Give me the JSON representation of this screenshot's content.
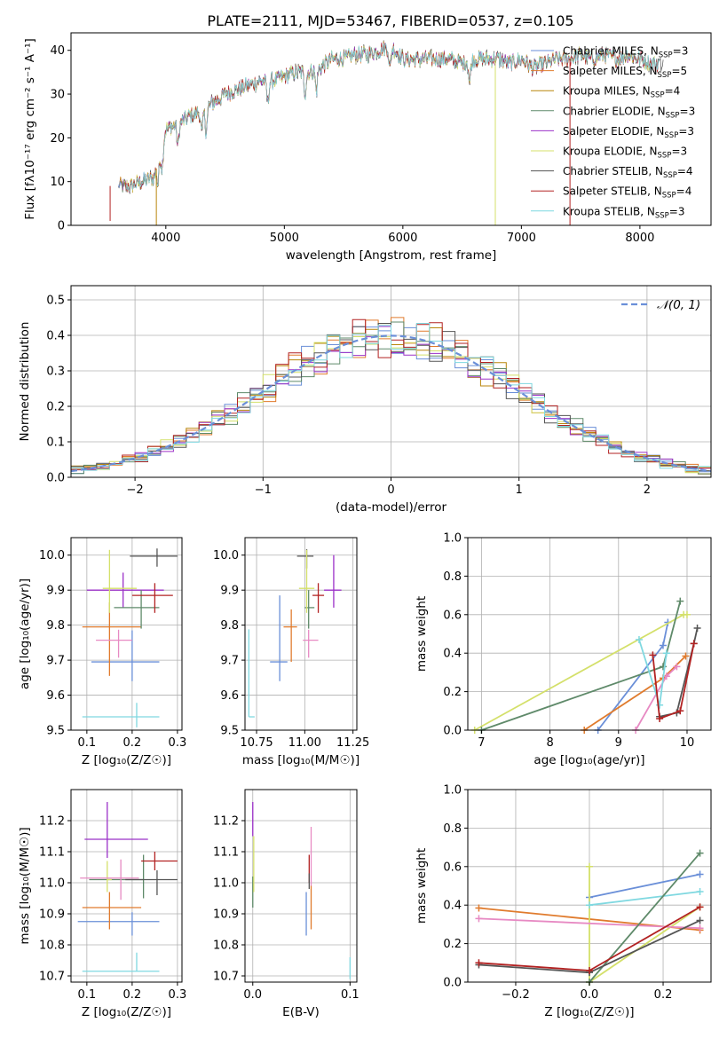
{
  "figure": {
    "title": "PLATE=2111, MJD=53467, FIBERID=0537, z=0.105"
  },
  "colors": {
    "chabrier_miles": "#6a8fd8",
    "salpeter_miles": "#e07b2d",
    "kroupa_miles": "#b8860b",
    "chabrier_elodie": "#5f8a6a",
    "salpeter_elodie": "#9b30c8",
    "kroupa_elodie": "#d4e06a",
    "chabrier_stelib": "#555555",
    "salpeter_stelib": "#b22222",
    "kroupa_stelib": "#7fd8e0",
    "pink": "#e78ac3"
  },
  "chart_data": [
    {
      "id": "spectrum",
      "type": "line",
      "xlabel": "wavelength [Angstrom, rest frame]",
      "ylabel": "Flux [fλ10⁻¹⁷ erg cm⁻² s⁻¹ A⁻¹]",
      "xlim": [
        3200,
        8600
      ],
      "ylim": [
        0,
        44
      ],
      "xticks": [
        4000,
        5000,
        6000,
        7000,
        8000
      ],
      "yticks": [
        0,
        10,
        20,
        30,
        40
      ],
      "grid": false,
      "legend_position": "right",
      "series": [
        {
          "name": "Chabrier MILES, N_SSP=3",
          "color": "#6a8fd8"
        },
        {
          "name": "Salpeter MILES, N_SSP=5",
          "color": "#e07b2d"
        },
        {
          "name": "Kroupa MILES, N_SSP=4",
          "color": "#b8860b"
        },
        {
          "name": "Chabrier ELODIE, N_SSP=3",
          "color": "#5f8a6a"
        },
        {
          "name": "Salpeter ELODIE, N_SSP=3",
          "color": "#9b30c8"
        },
        {
          "name": "Kroupa ELODIE, N_SSP=3",
          "color": "#d4e06a"
        },
        {
          "name": "Chabrier STELIB, N_SSP=4",
          "color": "#555555"
        },
        {
          "name": "Salpeter STELIB, N_SSP=4",
          "color": "#b22222"
        },
        {
          "name": "Kroupa STELIB, N_SSP=3",
          "color": "#7fd8e0"
        }
      ],
      "continuum": {
        "x": [
          3600,
          3700,
          3800,
          3900,
          3950,
          4000,
          4100,
          4200,
          4300,
          4400,
          4500,
          4600,
          4700,
          4800,
          4900,
          5000,
          5100,
          5200,
          5300,
          5400,
          5500,
          5600,
          5700,
          5800,
          5900,
          6000,
          6100,
          6200,
          6300,
          6400,
          6500,
          6600,
          6700,
          6800,
          6900,
          7000,
          7100,
          7200,
          7300,
          7400,
          7500,
          7600,
          7700,
          7800,
          7900,
          8000,
          8100,
          8200
        ],
        "y": [
          9,
          9,
          10,
          11,
          16,
          22,
          23,
          25,
          26,
          28,
          30,
          31,
          32,
          33,
          33,
          34,
          35,
          35,
          36,
          38,
          38,
          39,
          39,
          40,
          41,
          38,
          38,
          38,
          38,
          38,
          37,
          38,
          38,
          38,
          37,
          38,
          36,
          37,
          38,
          38,
          39,
          38,
          39,
          38,
          39,
          38,
          37,
          37
        ]
      },
      "spikes": [
        {
          "x": 3530,
          "y": 1,
          "color": "#b22222"
        },
        {
          "x": 3920,
          "y": 0,
          "color": "#b8860b"
        },
        {
          "x": 6780,
          "y": 0,
          "color": "#d4e06a"
        },
        {
          "x": 7410,
          "y": 0,
          "color": "#b22222"
        }
      ]
    },
    {
      "id": "residuals",
      "type": "histogram",
      "xlabel": "(data-model)/error",
      "ylabel": "Normed distribution",
      "xlim": [
        -2.5,
        2.5
      ],
      "ylim": [
        0,
        0.54
      ],
      "xticks": [
        -2,
        -1,
        0,
        1,
        2
      ],
      "yticks": [
        0.0,
        0.1,
        0.2,
        0.3,
        0.4,
        0.5
      ],
      "grid": true,
      "legend_position": "upper right",
      "reference_curve": {
        "name": "𝒩(0, 1)",
        "color": "#6a8fd8",
        "style": "dashed"
      },
      "bin_width": 0.1,
      "bin_start": -2.5
    },
    {
      "id": "age_vs_Z",
      "type": "errorbar",
      "xlabel": "Z [log₁₀(Z/Z☉)]",
      "ylabel": "age  [log₁₀(age/yr)]",
      "xlim": [
        0.065,
        0.31
      ],
      "ylim": [
        9.5,
        10.05
      ],
      "xticks": [
        0.1,
        0.2,
        0.3
      ],
      "yticks": [
        9.5,
        9.6,
        9.7,
        9.8,
        9.9,
        10.0
      ],
      "grid": true,
      "points": [
        {
          "x": 0.2,
          "xerr": [
            0.09,
            0.06
          ],
          "y": 9.695,
          "yerr": [
            0.055,
            0.09
          ],
          "color": "#6a8fd8"
        },
        {
          "x": 0.15,
          "xerr": [
            0.06,
            0.07
          ],
          "y": 9.795,
          "yerr": [
            0.14,
            0.07
          ],
          "color": "#e07b2d"
        },
        {
          "x": 0.18,
          "xerr": [
            0.08,
            0.09
          ],
          "y": 9.9,
          "yerr": [
            0.05,
            0.05
          ],
          "color": "#9b30c8"
        },
        {
          "x": 0.22,
          "xerr": [
            0.06,
            0.04
          ],
          "y": 9.85,
          "yerr": [
            0.06,
            0.05
          ],
          "color": "#5f8a6a"
        },
        {
          "x": 0.25,
          "xerr": [
            0.05,
            0.04
          ],
          "y": 9.885,
          "yerr": [
            0.05,
            0.035
          ],
          "color": "#b22222"
        },
        {
          "x": 0.255,
          "xerr": [
            0.06,
            0.045
          ],
          "y": 9.997,
          "yerr": [
            0.03,
            0.022
          ],
          "color": "#555555"
        },
        {
          "x": 0.15,
          "xerr": [
            0.015,
            0.06
          ],
          "y": 9.905,
          "yerr": [
            0.07,
            0.11
          ],
          "color": "#d4e06a"
        },
        {
          "x": 0.17,
          "xerr": [
            0.05,
            0.03
          ],
          "y": 9.757,
          "yerr": [
            0.05,
            0.03
          ],
          "color": "#e78ac3"
        },
        {
          "x": 0.21,
          "xerr": [
            0.12,
            0.05
          ],
          "y": 9.538,
          "yerr": [
            0.03,
            0.04
          ],
          "color": "#7fd8e0"
        }
      ]
    },
    {
      "id": "age_vs_mass",
      "type": "errorbar",
      "xlabel": "mass [log₁₀(M/M☉)]",
      "ylabel": "",
      "xlim": [
        10.69,
        11.27
      ],
      "ylim": [
        9.5,
        10.05
      ],
      "xticks": [
        10.75,
        11.0,
        11.25
      ],
      "yticks": [
        9.5,
        9.6,
        9.7,
        9.8,
        9.9,
        10.0
      ],
      "grid": true,
      "points": [
        {
          "x": 10.87,
          "xerr": [
            0.05,
            0.04
          ],
          "y": 9.695,
          "yerr": [
            0.055,
            0.19
          ],
          "color": "#6a8fd8"
        },
        {
          "x": 10.93,
          "xerr": [
            0.04,
            0.03
          ],
          "y": 9.795,
          "yerr": [
            0.1,
            0.05
          ],
          "color": "#e07b2d"
        },
        {
          "x": 11.15,
          "xerr": [
            0.05,
            0.04
          ],
          "y": 9.9,
          "yerr": [
            0.05,
            0.1
          ],
          "color": "#9b30c8"
        },
        {
          "x": 11.02,
          "xerr": [
            0.02,
            0.03
          ],
          "y": 9.85,
          "yerr": [
            0.06,
            0.05
          ],
          "color": "#5f8a6a"
        },
        {
          "x": 11.07,
          "xerr": [
            0.03,
            0.03
          ],
          "y": 9.885,
          "yerr": [
            0.05,
            0.035
          ],
          "color": "#b22222"
        },
        {
          "x": 11.01,
          "xerr": [
            0.05,
            0.035
          ],
          "y": 9.997,
          "yerr": [
            0.035,
            0.02
          ],
          "color": "#555555"
        },
        {
          "x": 11.01,
          "xerr": [
            0.04,
            0.04
          ],
          "y": 9.905,
          "yerr": [
            0.07,
            0.11
          ],
          "color": "#d4e06a"
        },
        {
          "x": 11.02,
          "xerr": [
            0.03,
            0.05
          ],
          "y": 9.757,
          "yerr": [
            0.05,
            0.03
          ],
          "color": "#e78ac3"
        },
        {
          "x": 10.71,
          "xerr": [
            0.0,
            0.03
          ],
          "y": 9.538,
          "yerr": [
            0.0,
            0.25
          ],
          "color": "#7fd8e0"
        }
      ]
    },
    {
      "id": "weight_vs_age",
      "type": "line",
      "xlabel": "age  [log₁₀(age/yr)]",
      "ylabel": "mass weight",
      "xlim": [
        6.8,
        10.35
      ],
      "ylim": [
        0,
        1.0
      ],
      "xticks": [
        7,
        8,
        9,
        10
      ],
      "yticks": [
        0.0,
        0.2,
        0.4,
        0.6,
        0.8,
        1.0
      ],
      "grid": true,
      "series": [
        {
          "color": "#6a8fd8",
          "x": [
            8.7,
            9.65,
            9.72
          ],
          "y": [
            0.0,
            0.44,
            0.56
          ]
        },
        {
          "color": "#e07b2d",
          "x": [
            8.5,
            9.65,
            9.98
          ],
          "y": [
            0.0,
            0.27,
            0.385
          ]
        },
        {
          "color": "#d4e06a",
          "x": [
            6.9,
            9.95,
            10.0
          ],
          "y": [
            0.0,
            0.6,
            0.6
          ]
        },
        {
          "color": "#5f8a6a",
          "x": [
            7.0,
            9.65,
            9.9
          ],
          "y": [
            0.0,
            0.33,
            0.67
          ]
        },
        {
          "color": "#e78ac3",
          "x": [
            9.25,
            9.7,
            9.85
          ],
          "y": [
            0.0,
            0.28,
            0.33
          ]
        },
        {
          "color": "#7fd8e0",
          "x": [
            9.3,
            9.6,
            9.7
          ],
          "y": [
            0.47,
            0.13,
            0.4
          ]
        },
        {
          "color": "#555555",
          "x": [
            9.6,
            9.85,
            10.1,
            10.15
          ],
          "y": [
            0.07,
            0.09,
            0.45,
            0.53
          ]
        },
        {
          "color": "#b22222",
          "x": [
            9.5,
            9.6,
            9.9,
            10.1
          ],
          "y": [
            0.39,
            0.06,
            0.1,
            0.45
          ]
        }
      ]
    },
    {
      "id": "mass_vs_Z",
      "type": "errorbar",
      "xlabel": "Z [log₁₀(Z/Z☉)]",
      "ylabel": "mass [log₁₀(M/M☉)]",
      "xlim": [
        0.065,
        0.31
      ],
      "ylim": [
        10.68,
        11.3
      ],
      "xticks": [
        0.1,
        0.2,
        0.3
      ],
      "yticks": [
        10.7,
        10.8,
        10.9,
        11.0,
        11.1,
        11.2
      ],
      "grid": true,
      "points": [
        {
          "x": 0.2,
          "xerr": [
            0.12,
            0.06
          ],
          "y": 10.875,
          "yerr": [
            0.045,
            0.03
          ],
          "color": "#6a8fd8"
        },
        {
          "x": 0.15,
          "xerr": [
            0.06,
            0.07
          ],
          "y": 10.92,
          "yerr": [
            0.07,
            0.05
          ],
          "color": "#e07b2d"
        },
        {
          "x": 0.145,
          "xerr": [
            0.05,
            0.09
          ],
          "y": 11.14,
          "yerr": [
            0.06,
            0.12
          ],
          "color": "#9b30c8"
        },
        {
          "x": 0.225,
          "xerr": [
            0.12,
            0.0
          ],
          "y": 11.01,
          "yerr": [
            0.06,
            0.08
          ],
          "color": "#5f8a6a"
        },
        {
          "x": 0.25,
          "xerr": [
            0.03,
            0.05
          ],
          "y": 11.07,
          "yerr": [
            0.03,
            0.03
          ],
          "color": "#b22222"
        },
        {
          "x": 0.255,
          "xerr": [
            0.07,
            0.045
          ],
          "y": 11.01,
          "yerr": [
            0.05,
            0.03
          ],
          "color": "#555555"
        },
        {
          "x": 0.145,
          "xerr": [
            0.0,
            0.01
          ],
          "y": 11.01,
          "yerr": [
            0.04,
            0.06
          ],
          "color": "#d4e06a"
        },
        {
          "x": 0.175,
          "xerr": [
            0.09,
            0.04
          ],
          "y": 11.015,
          "yerr": [
            0.07,
            0.06
          ],
          "color": "#e78ac3"
        },
        {
          "x": 0.21,
          "xerr": [
            0.12,
            0.05
          ],
          "y": 10.715,
          "yerr": [
            0.0,
            0.06
          ],
          "color": "#7fd8e0"
        }
      ]
    },
    {
      "id": "mass_vs_EBV",
      "type": "errorbar",
      "xlabel": "E(B-V)",
      "ylabel": "",
      "xlim": [
        -0.008,
        0.107
      ],
      "ylim": [
        10.68,
        11.3
      ],
      "xticks": [
        0.0,
        0.1
      ],
      "yticks": [
        10.7,
        10.8,
        10.9,
        11.0,
        11.1,
        11.2
      ],
      "grid": true,
      "points": [
        {
          "x": 0.055,
          "xerr": [
            0.0,
            0.0
          ],
          "y": 10.9,
          "yerr": [
            0.07,
            0.07
          ],
          "color": "#6a8fd8"
        },
        {
          "x": 0.06,
          "xerr": [
            0.0,
            0.0
          ],
          "y": 10.92,
          "yerr": [
            0.07,
            0.07
          ],
          "color": "#e07b2d"
        },
        {
          "x": 0.0,
          "xerr": [
            0.0,
            0.0
          ],
          "y": 11.2,
          "yerr": [
            0.05,
            0.06
          ],
          "color": "#9b30c8"
        },
        {
          "x": 0.0,
          "xerr": [
            0.0,
            0.0
          ],
          "y": 10.97,
          "yerr": [
            0.05,
            0.05
          ],
          "color": "#5f8a6a"
        },
        {
          "x": 0.058,
          "xerr": [
            0.0,
            0.0
          ],
          "y": 11.05,
          "yerr": [
            0.05,
            0.04
          ],
          "color": "#b22222"
        },
        {
          "x": 0.058,
          "xerr": [
            0.0,
            0.0
          ],
          "y": 11.01,
          "yerr": [
            0.03,
            0.02
          ],
          "color": "#555555"
        },
        {
          "x": 0.001,
          "xerr": [
            0.0,
            0.0
          ],
          "y": 11.05,
          "yerr": [
            0.08,
            0.1
          ],
          "color": "#d4e06a"
        },
        {
          "x": 0.06,
          "xerr": [
            0.0,
            0.0
          ],
          "y": 11.07,
          "yerr": [
            0.08,
            0.11
          ],
          "color": "#e78ac3"
        },
        {
          "x": 0.1,
          "xerr": [
            0.0,
            0.0
          ],
          "y": 10.72,
          "yerr": [
            0.03,
            0.04
          ],
          "color": "#7fd8e0"
        }
      ]
    },
    {
      "id": "weight_vs_Z",
      "type": "line",
      "xlabel": "Z [log₁₀(Z/Z☉)]",
      "ylabel": "mass weight",
      "xlim": [
        -0.33,
        0.33
      ],
      "ylim": [
        0,
        1.0
      ],
      "xticks": [
        -0.2,
        0.0,
        0.2
      ],
      "yticks": [
        0.0,
        0.2,
        0.4,
        0.6,
        0.8,
        1.0
      ],
      "grid": true,
      "series": [
        {
          "color": "#6a8fd8",
          "x": [
            0.0,
            0.3
          ],
          "y": [
            0.44,
            0.56
          ]
        },
        {
          "color": "#e07b2d",
          "x": [
            -0.3,
            0.3
          ],
          "y": [
            0.385,
            0.27
          ]
        },
        {
          "color": "#d4e06a",
          "x": [
            0.0,
            0.0,
            0.3
          ],
          "y": [
            0.6,
            0.0,
            0.39
          ]
        },
        {
          "color": "#e78ac3",
          "x": [
            -0.3,
            0.3
          ],
          "y": [
            0.33,
            0.28
          ]
        },
        {
          "color": "#7fd8e0",
          "x": [
            0.0,
            0.3
          ],
          "y": [
            0.4,
            0.47
          ]
        },
        {
          "color": "#5f8a6a",
          "x": [
            0.0,
            0.3
          ],
          "y": [
            0.0,
            0.67
          ]
        },
        {
          "color": "#555555",
          "x": [
            -0.3,
            0.0,
            0.3
          ],
          "y": [
            0.09,
            0.05,
            0.32
          ]
        },
        {
          "color": "#b22222",
          "x": [
            -0.3,
            0.0,
            0.3
          ],
          "y": [
            0.1,
            0.06,
            0.39
          ]
        }
      ]
    }
  ]
}
